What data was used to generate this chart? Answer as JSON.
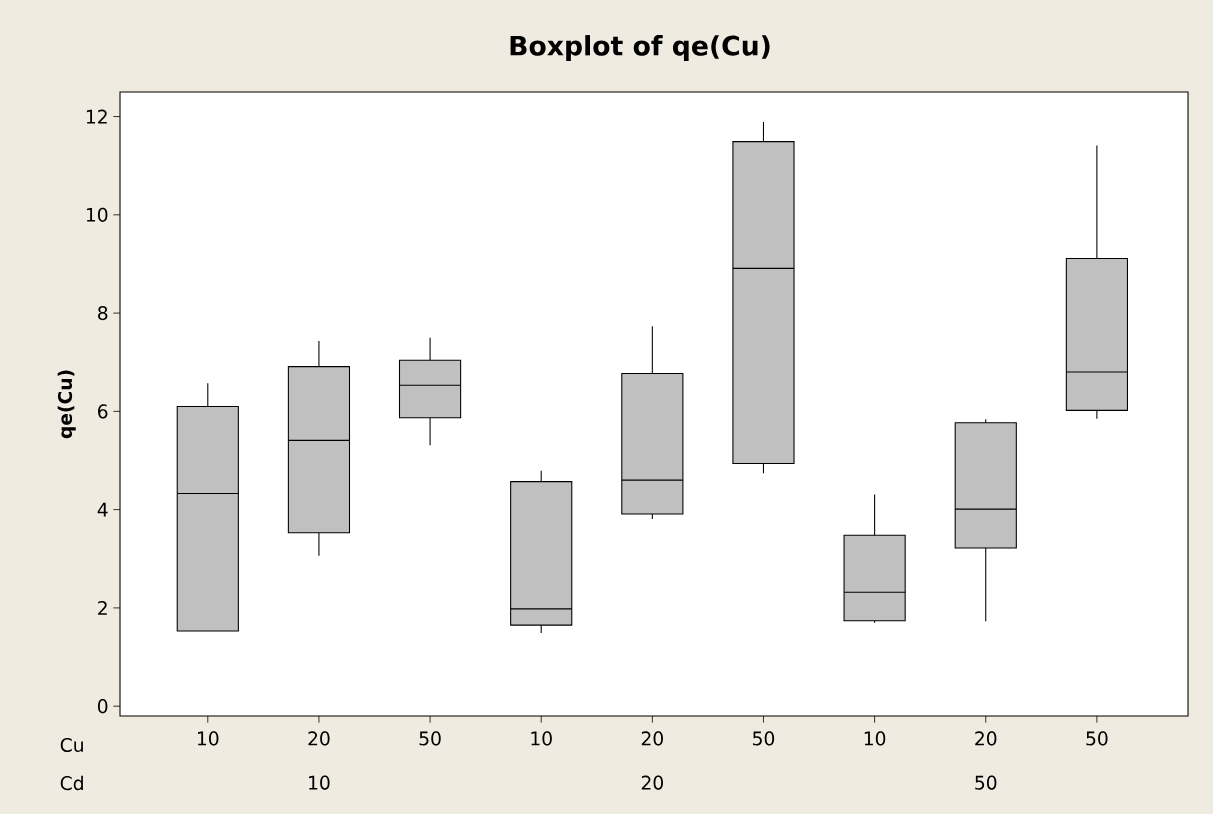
{
  "chart_data": {
    "type": "box",
    "title": "Boxplot of qe(Cu)",
    "ylabel": "qe(Cu)",
    "categories": [
      "10",
      "20",
      "50",
      "10",
      "20",
      "50",
      "10",
      "20",
      "50"
    ],
    "annotations": [
      "Cu",
      "Cd",
      "10",
      "20",
      "50"
    ],
    "series": [
      {
        "color": "#c0c0c0",
        "boxes": [
          {
            "low": 1.53,
            "q1": 1.53,
            "median": 4.33,
            "q3": 6.1,
            "high": 6.57
          },
          {
            "low": 3.06,
            "q1": 3.53,
            "median": 5.41,
            "q3": 6.91,
            "high": 7.43
          },
          {
            "low": 5.31,
            "q1": 5.87,
            "median": 6.53,
            "q3": 7.04,
            "high": 7.5
          },
          {
            "low": 1.49,
            "q1": 1.65,
            "median": 1.98,
            "q3": 4.57,
            "high": 4.79
          },
          {
            "low": 3.81,
            "q1": 3.91,
            "median": 4.6,
            "q3": 6.77,
            "high": 7.73
          },
          {
            "low": 4.74,
            "q1": 4.94,
            "median": 8.91,
            "q3": 11.49,
            "high": 11.89
          },
          {
            "low": 1.7,
            "q1": 1.74,
            "median": 2.32,
            "q3": 3.48,
            "high": 4.31
          },
          {
            "low": 1.73,
            "q1": 3.22,
            "median": 4.01,
            "q3": 5.77,
            "high": 5.84
          },
          {
            "low": 5.85,
            "q1": 6.02,
            "median": 6.8,
            "q3": 9.11,
            "high": 11.41
          }
        ]
      }
    ],
    "ylim": [
      -0.2,
      12.5
    ],
    "yticks": [
      0,
      2,
      4,
      6,
      8,
      10,
      12
    ],
    "grid": false
  }
}
